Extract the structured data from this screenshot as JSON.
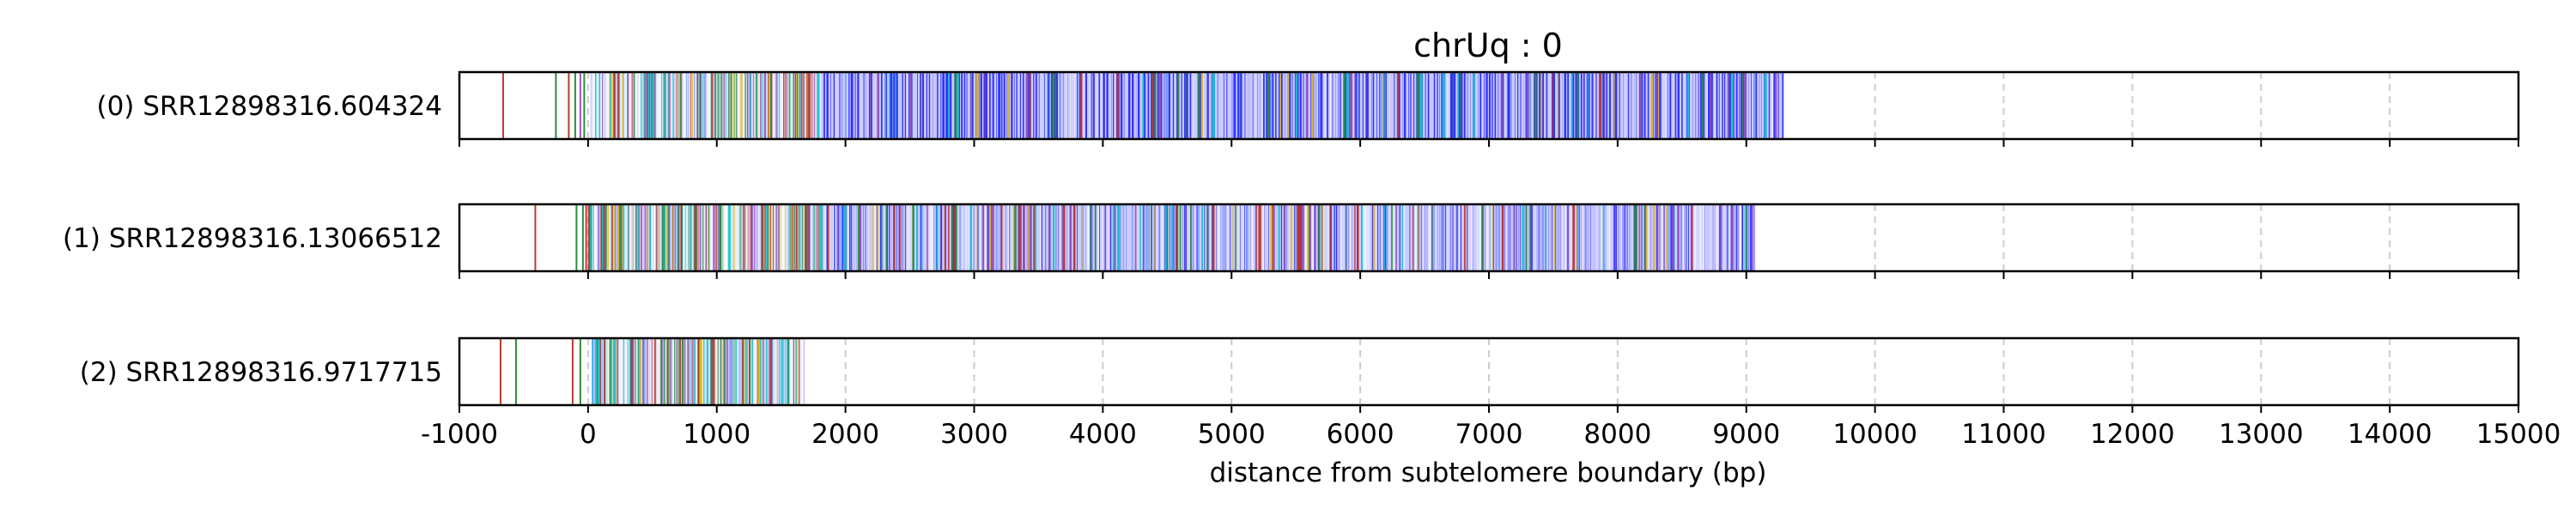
{
  "chart_data": {
    "type": "bar",
    "title": "chrUq : 0",
    "xlabel": "distance from subtelomere boundary (bp)",
    "ylabel": "",
    "xlim": [
      -1000,
      15000
    ],
    "x_ticks": [
      -1000,
      0,
      1000,
      2000,
      3000,
      4000,
      5000,
      6000,
      7000,
      8000,
      9000,
      10000,
      11000,
      12000,
      13000,
      14000,
      15000
    ],
    "x_tick_labels": [
      "-1000",
      "0",
      "1000",
      "2000",
      "3000",
      "4000",
      "5000",
      "6000",
      "7000",
      "8000",
      "9000",
      "10000",
      "11000",
      "12000",
      "13000",
      "14000",
      "15000"
    ],
    "grid": "vertical dashed",
    "colors": {
      "repeat_main": "#3333ff",
      "accent_cyan": "#22c8c8",
      "accent_green": "#2e8b3e",
      "accent_yellow": "#e6c229",
      "accent_purple": "#9b59b6",
      "accent_red": "#c0392b",
      "grid": "#cccccc",
      "frame": "#000000"
    },
    "reads": [
      {
        "label": "(0) SRR12898316.604324",
        "block_start": 20,
        "block_end": 9290,
        "sparse_marks": [
          {
            "x": -660,
            "color": "accent_red"
          },
          {
            "x": -250,
            "color": "accent_green"
          },
          {
            "x": -150,
            "color": "accent_red"
          },
          {
            "x": -100,
            "color": "accent_green"
          },
          {
            "x": -60,
            "color": "accent_purple"
          },
          {
            "x": -30,
            "color": "accent_green"
          }
        ],
        "dense_zones": [
          {
            "start": 20,
            "end": 1800,
            "intensity": "high"
          },
          {
            "start": 1800,
            "end": 9290,
            "intensity": "low"
          }
        ]
      },
      {
        "label": "(1) SRR12898316.13066512",
        "block_start": 0,
        "block_end": 9070,
        "sparse_marks": [
          {
            "x": -410,
            "color": "accent_red"
          },
          {
            "x": -90,
            "color": "accent_green"
          },
          {
            "x": -40,
            "color": "accent_green"
          },
          {
            "x": -15,
            "color": "accent_red"
          }
        ],
        "dense_zones": [
          {
            "start": 0,
            "end": 1800,
            "intensity": "high"
          },
          {
            "start": 1800,
            "end": 9070,
            "intensity": "medium"
          }
        ]
      },
      {
        "label": "(2) SRR12898316.9717715",
        "block_start": 30,
        "block_end": 1680,
        "sparse_marks": [
          {
            "x": -680,
            "color": "accent_red"
          },
          {
            "x": -560,
            "color": "accent_green"
          },
          {
            "x": -120,
            "color": "accent_red"
          },
          {
            "x": -60,
            "color": "accent_green"
          }
        ],
        "dense_zones": [
          {
            "start": 30,
            "end": 1680,
            "intensity": "high"
          }
        ]
      }
    ]
  }
}
